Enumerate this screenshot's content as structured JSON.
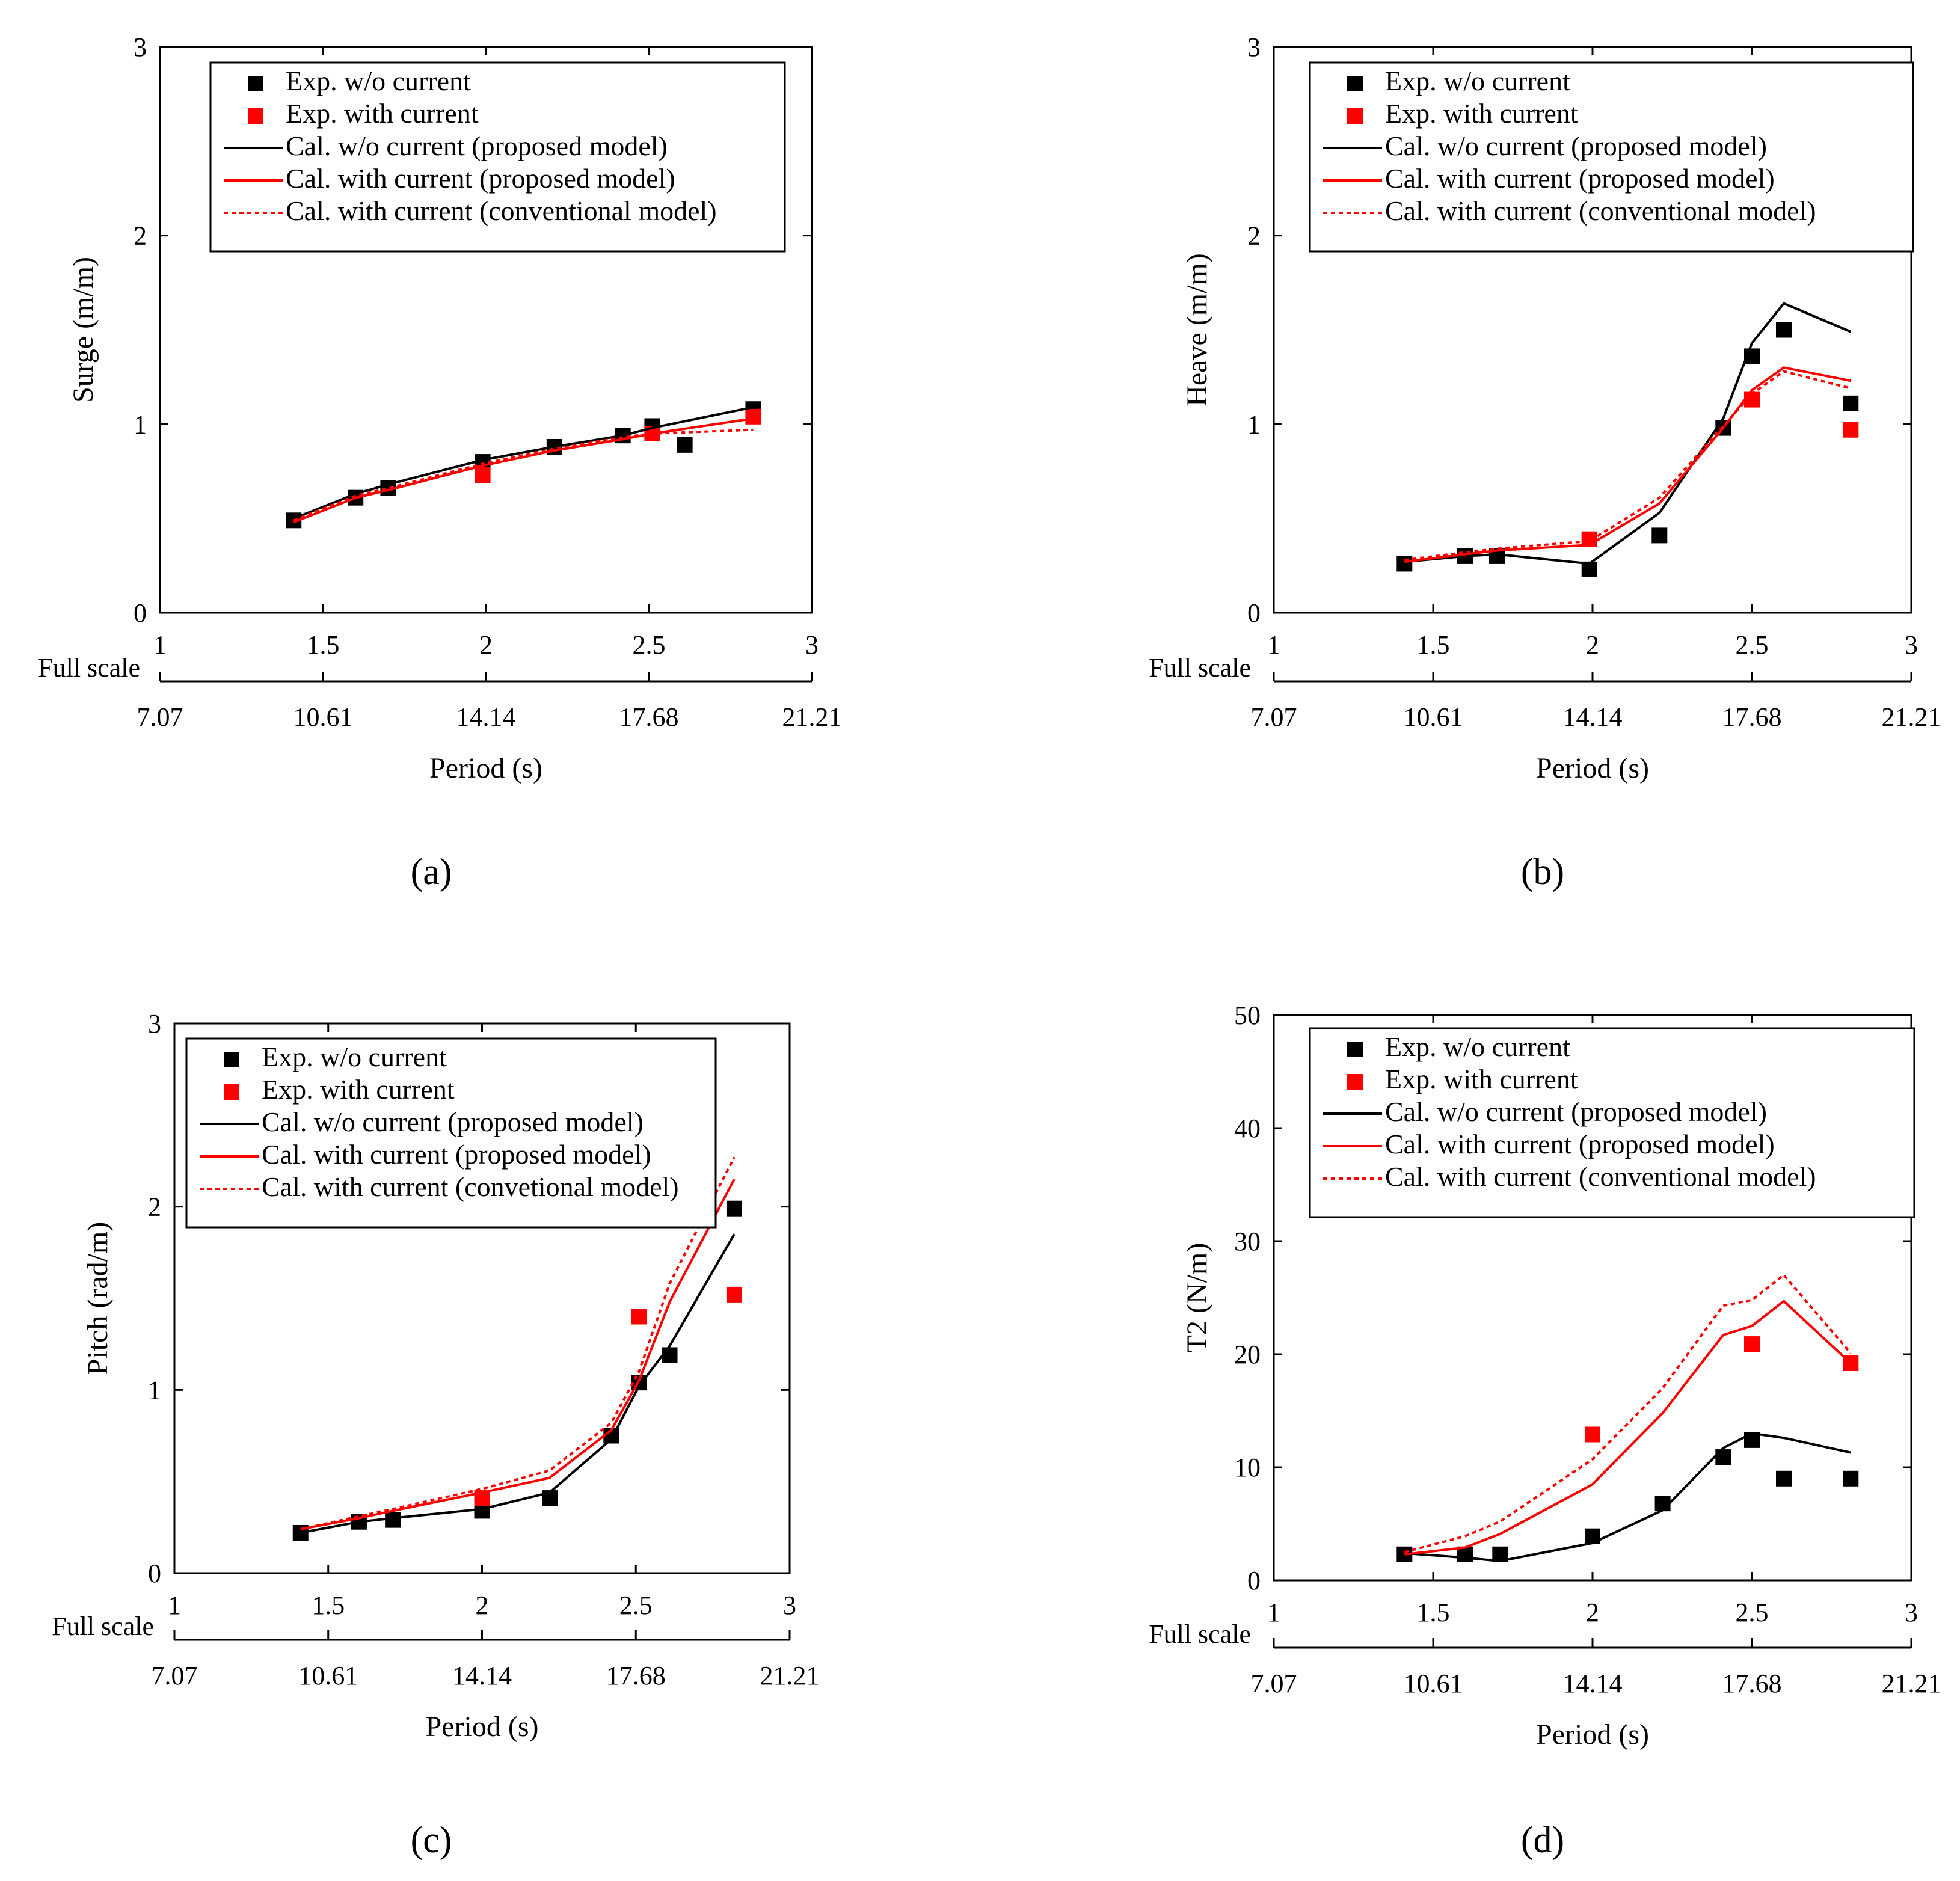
{
  "colors": {
    "black": "#000000",
    "red": "#ff0000"
  },
  "legend_labels": {
    "exp_wo": "Exp. w/o current",
    "exp_with": "Exp. with current",
    "cal_wo": "Cal. w/o current (proposed model)",
    "cal_with": "Cal. with current (proposed model)",
    "cal_conv": "Cal. with current (conventional model)",
    "cal_conv_typo": "Cal. with current (convetional model)"
  },
  "chart_data": [
    {
      "panel": "(a)",
      "type": "line",
      "ylabel": "Surge (m/m)",
      "xlabel": "Period (s)",
      "full_scale_label": "Full scale",
      "xlim": [
        1,
        3
      ],
      "ylim": [
        0,
        3
      ],
      "xticks": [
        "1",
        "1.5",
        "2",
        "2.5",
        "3"
      ],
      "yticks": [
        "0",
        "1",
        "2",
        "3"
      ],
      "full_scale_ticks": [
        "7.07",
        "10.61",
        "14.14",
        "17.68",
        "21.21"
      ],
      "legend": [
        "Exp. w/o current",
        "Exp. with current",
        "Cal. w/o current (proposed model)",
        "Cal. with current (proposed model)",
        "Cal. with current (conventional model)"
      ],
      "series": [
        {
          "name": "Exp. w/o current",
          "kind": "scatter",
          "color": "black",
          "x": [
            1.41,
            1.6,
            1.7,
            1.99,
            2.21,
            2.42,
            2.51,
            2.61,
            2.82
          ],
          "y": [
            0.49,
            0.61,
            0.66,
            0.8,
            0.88,
            0.94,
            0.99,
            0.89,
            1.08
          ]
        },
        {
          "name": "Exp. with current",
          "kind": "scatter",
          "color": "red",
          "x": [
            1.99,
            2.51,
            2.82
          ],
          "y": [
            0.73,
            0.95,
            1.04
          ]
        },
        {
          "name": "Cal. w/o current (proposed model)",
          "kind": "line",
          "color": "black",
          "x": [
            1.41,
            1.6,
            1.7,
            1.99,
            2.21,
            2.42,
            2.51,
            2.82
          ],
          "y": [
            0.5,
            0.63,
            0.68,
            0.81,
            0.88,
            0.94,
            0.98,
            1.09
          ]
        },
        {
          "name": "Cal. with current (proposed model)",
          "kind": "line",
          "color": "red",
          "x": [
            1.41,
            1.6,
            1.7,
            1.99,
            2.21,
            2.42,
            2.51,
            2.82
          ],
          "y": [
            0.48,
            0.61,
            0.65,
            0.78,
            0.86,
            0.92,
            0.95,
            1.03
          ]
        },
        {
          "name": "Cal. with current (conventional model)",
          "kind": "dotted",
          "color": "red",
          "x": [
            1.41,
            1.6,
            1.7,
            1.99,
            2.21,
            2.42,
            2.51,
            2.82
          ],
          "y": [
            0.49,
            0.62,
            0.66,
            0.79,
            0.87,
            0.93,
            0.95,
            0.97
          ]
        }
      ]
    },
    {
      "panel": "(b)",
      "type": "line",
      "ylabel": "Heave (m/m)",
      "xlabel": "Period (s)",
      "full_scale_label": "Full scale",
      "xlim": [
        1,
        3
      ],
      "ylim": [
        0,
        3
      ],
      "xticks": [
        "1",
        "1.5",
        "2",
        "2.5",
        "3"
      ],
      "yticks": [
        "0",
        "1",
        "2",
        "3"
      ],
      "full_scale_ticks": [
        "7.07",
        "10.61",
        "14.14",
        "17.68",
        "21.21"
      ],
      "legend": [
        "Exp. w/o current",
        "Exp. with current",
        "Cal. w/o current (proposed model)",
        "Cal. with current (proposed model)",
        "Cal. with current (conventional model)"
      ],
      "series": [
        {
          "name": "Exp. w/o current",
          "kind": "scatter",
          "color": "black",
          "x": [
            1.41,
            1.6,
            1.7,
            1.99,
            2.21,
            2.41,
            2.5,
            2.6,
            2.81
          ],
          "y": [
            0.26,
            0.3,
            0.3,
            0.23,
            0.41,
            0.98,
            1.36,
            1.5,
            1.11
          ]
        },
        {
          "name": "Exp. with current",
          "kind": "scatter",
          "color": "red",
          "x": [
            1.99,
            2.5,
            2.81
          ],
          "y": [
            0.39,
            1.13,
            0.97
          ]
        },
        {
          "name": "Cal. w/o current (proposed model)",
          "kind": "line",
          "color": "black",
          "x": [
            1.41,
            1.6,
            1.7,
            1.99,
            2.21,
            2.41,
            2.5,
            2.6,
            2.81
          ],
          "y": [
            0.27,
            0.3,
            0.31,
            0.26,
            0.53,
            1.03,
            1.43,
            1.64,
            1.49
          ]
        },
        {
          "name": "Cal. with current (proposed model)",
          "kind": "line",
          "color": "red",
          "x": [
            1.41,
            1.6,
            1.7,
            1.99,
            2.21,
            2.41,
            2.5,
            2.6,
            2.81
          ],
          "y": [
            0.27,
            0.31,
            0.33,
            0.36,
            0.58,
            0.98,
            1.18,
            1.3,
            1.23
          ]
        },
        {
          "name": "Cal. with current (conventional model)",
          "kind": "dotted",
          "color": "red",
          "x": [
            1.41,
            1.6,
            1.7,
            1.99,
            2.21,
            2.41,
            2.5,
            2.6,
            2.81
          ],
          "y": [
            0.28,
            0.32,
            0.34,
            0.38,
            0.61,
            0.99,
            1.16,
            1.28,
            1.19
          ]
        }
      ]
    },
    {
      "panel": "(c)",
      "type": "line",
      "ylabel": "Pitch  (rad/m)",
      "xlabel": "Period (s)",
      "full_scale_label": "Full scale",
      "xlim": [
        1,
        3
      ],
      "ylim": [
        0,
        3
      ],
      "xticks": [
        "1",
        "1.5",
        "2",
        "2.5",
        "3"
      ],
      "yticks": [
        "0",
        "1",
        "2",
        "3"
      ],
      "full_scale_ticks": [
        "7.07",
        "10.61",
        "14.14",
        "17.68",
        "21.21"
      ],
      "legend": [
        "Exp. w/o current",
        "Exp. with current",
        "Cal. w/o current (proposed model)",
        "Cal. with current (proposed model)",
        "Cal. with current (convetional model)"
      ],
      "series": [
        {
          "name": "Exp. w/o current",
          "kind": "scatter",
          "color": "black",
          "x": [
            1.41,
            1.6,
            1.71,
            2.0,
            2.22,
            2.42,
            2.51,
            2.61,
            2.82
          ],
          "y": [
            0.22,
            0.28,
            0.29,
            0.34,
            0.41,
            0.75,
            1.04,
            1.19,
            1.99
          ]
        },
        {
          "name": "Exp. with current",
          "kind": "scatter",
          "color": "red",
          "x": [
            2.0,
            2.51,
            2.82
          ],
          "y": [
            0.41,
            1.4,
            1.52
          ]
        },
        {
          "name": "Cal. w/o current (proposed model)",
          "kind": "line",
          "color": "black",
          "x": [
            1.41,
            1.6,
            1.71,
            2.0,
            2.22,
            2.42,
            2.51,
            2.61,
            2.82
          ],
          "y": [
            0.22,
            0.28,
            0.3,
            0.35,
            0.44,
            0.73,
            1.02,
            1.24,
            1.85
          ]
        },
        {
          "name": "Cal. with current (proposed model)",
          "kind": "line",
          "color": "red",
          "x": [
            1.41,
            1.6,
            1.71,
            2.0,
            2.22,
            2.42,
            2.51,
            2.61,
            2.82
          ],
          "y": [
            0.24,
            0.3,
            0.34,
            0.44,
            0.52,
            0.78,
            1.05,
            1.48,
            2.15
          ]
        },
        {
          "name": "Cal. with current (convetional model)",
          "kind": "dotted",
          "color": "red",
          "x": [
            1.41,
            1.6,
            1.71,
            2.0,
            2.22,
            2.42,
            2.51,
            2.61,
            2.82
          ],
          "y": [
            0.24,
            0.31,
            0.35,
            0.46,
            0.56,
            0.82,
            1.1,
            1.58,
            2.27
          ]
        }
      ]
    },
    {
      "panel": "(d)",
      "type": "line",
      "ylabel": "T2  (N/m)",
      "xlabel": "Period (s)",
      "full_scale_label": "Full scale",
      "xlim": [
        1,
        3
      ],
      "ylim": [
        0,
        50
      ],
      "xticks": [
        "1",
        "1.5",
        "2",
        "2.5",
        "3"
      ],
      "yticks": [
        "0",
        "10",
        "20",
        "30",
        "40",
        "50"
      ],
      "full_scale_ticks": [
        "7.07",
        "10.61",
        "14.14",
        "17.68",
        "21.21"
      ],
      "legend": [
        "Exp. w/o current",
        "Exp. with current",
        "Cal. w/o current (proposed model)",
        "Cal. with current (proposed model)",
        "Cal. with current (conventional model)"
      ],
      "series": [
        {
          "name": "Exp. w/o current",
          "kind": "scatter",
          "color": "black",
          "x": [
            1.41,
            1.6,
            1.71,
            2.0,
            2.22,
            2.41,
            2.5,
            2.6,
            2.81
          ],
          "y": [
            2.3,
            2.3,
            2.3,
            3.9,
            6.8,
            10.9,
            12.4,
            9.0,
            9.0
          ]
        },
        {
          "name": "Exp. with current",
          "kind": "scatter",
          "color": "red",
          "x": [
            2.0,
            2.5,
            2.81
          ],
          "y": [
            12.9,
            20.9,
            19.2
          ]
        },
        {
          "name": "Cal. w/o current (proposed model)",
          "kind": "line",
          "color": "black",
          "x": [
            1.41,
            1.6,
            1.71,
            2.0,
            2.22,
            2.41,
            2.5,
            2.6,
            2.81
          ],
          "y": [
            2.4,
            2.0,
            1.7,
            3.3,
            6.2,
            11.7,
            13.0,
            12.6,
            11.3
          ]
        },
        {
          "name": "Cal. with current (proposed model)",
          "kind": "line",
          "color": "red",
          "x": [
            1.41,
            1.6,
            1.71,
            2.0,
            2.22,
            2.41,
            2.5,
            2.6,
            2.81
          ],
          "y": [
            2.3,
            2.9,
            4.1,
            8.5,
            14.8,
            21.7,
            22.5,
            24.7,
            19.2
          ]
        },
        {
          "name": "Cal. with current (conventional model)",
          "kind": "dotted",
          "color": "red",
          "x": [
            1.41,
            1.6,
            1.71,
            2.0,
            2.22,
            2.41,
            2.5,
            2.6,
            2.81
          ],
          "y": [
            2.5,
            3.9,
            5.2,
            10.7,
            17.0,
            24.3,
            24.8,
            27.0,
            20.1
          ]
        }
      ]
    }
  ]
}
